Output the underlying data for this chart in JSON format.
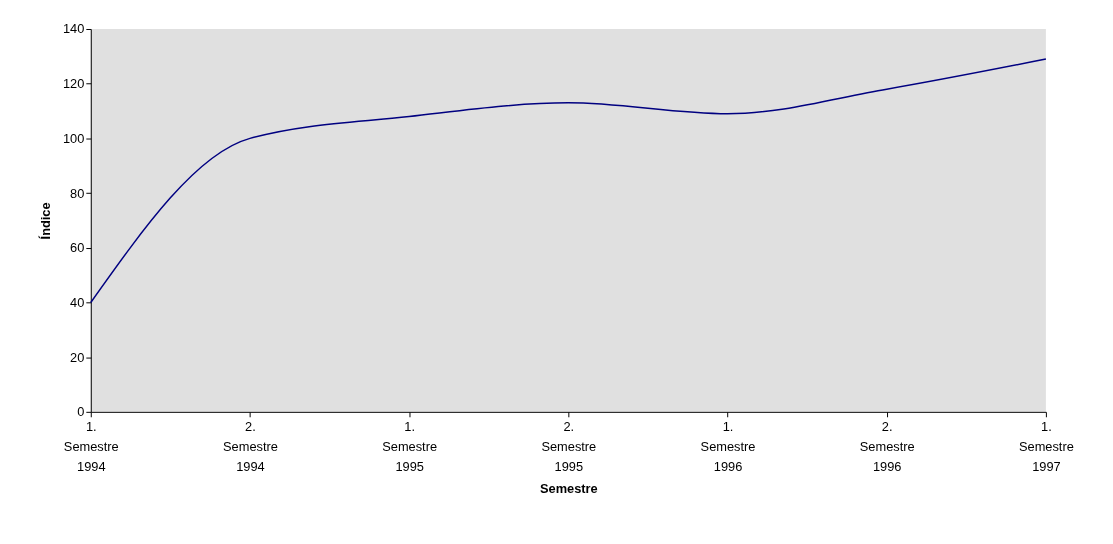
{
  "chart_data": {
    "type": "line",
    "xlabel": "Semestre",
    "ylabel": "Índice",
    "categories": [
      "1. Semestre 1994",
      "2. Semestre 1994",
      "1. Semestre 1995",
      "2. Semestre 1995",
      "1. Semestre 1996",
      "2. Semestre 1996",
      "1. Semestre 1997"
    ],
    "series": [
      {
        "color": "#000080",
        "values": [
          40,
          100,
          108,
          113,
          109,
          118,
          129
        ]
      }
    ],
    "ylim": [
      0,
      140
    ],
    "yticks": [
      0,
      20,
      40,
      60,
      80,
      100,
      120,
      140
    ],
    "grid": false,
    "marker": "none",
    "line_style": "solid"
  }
}
